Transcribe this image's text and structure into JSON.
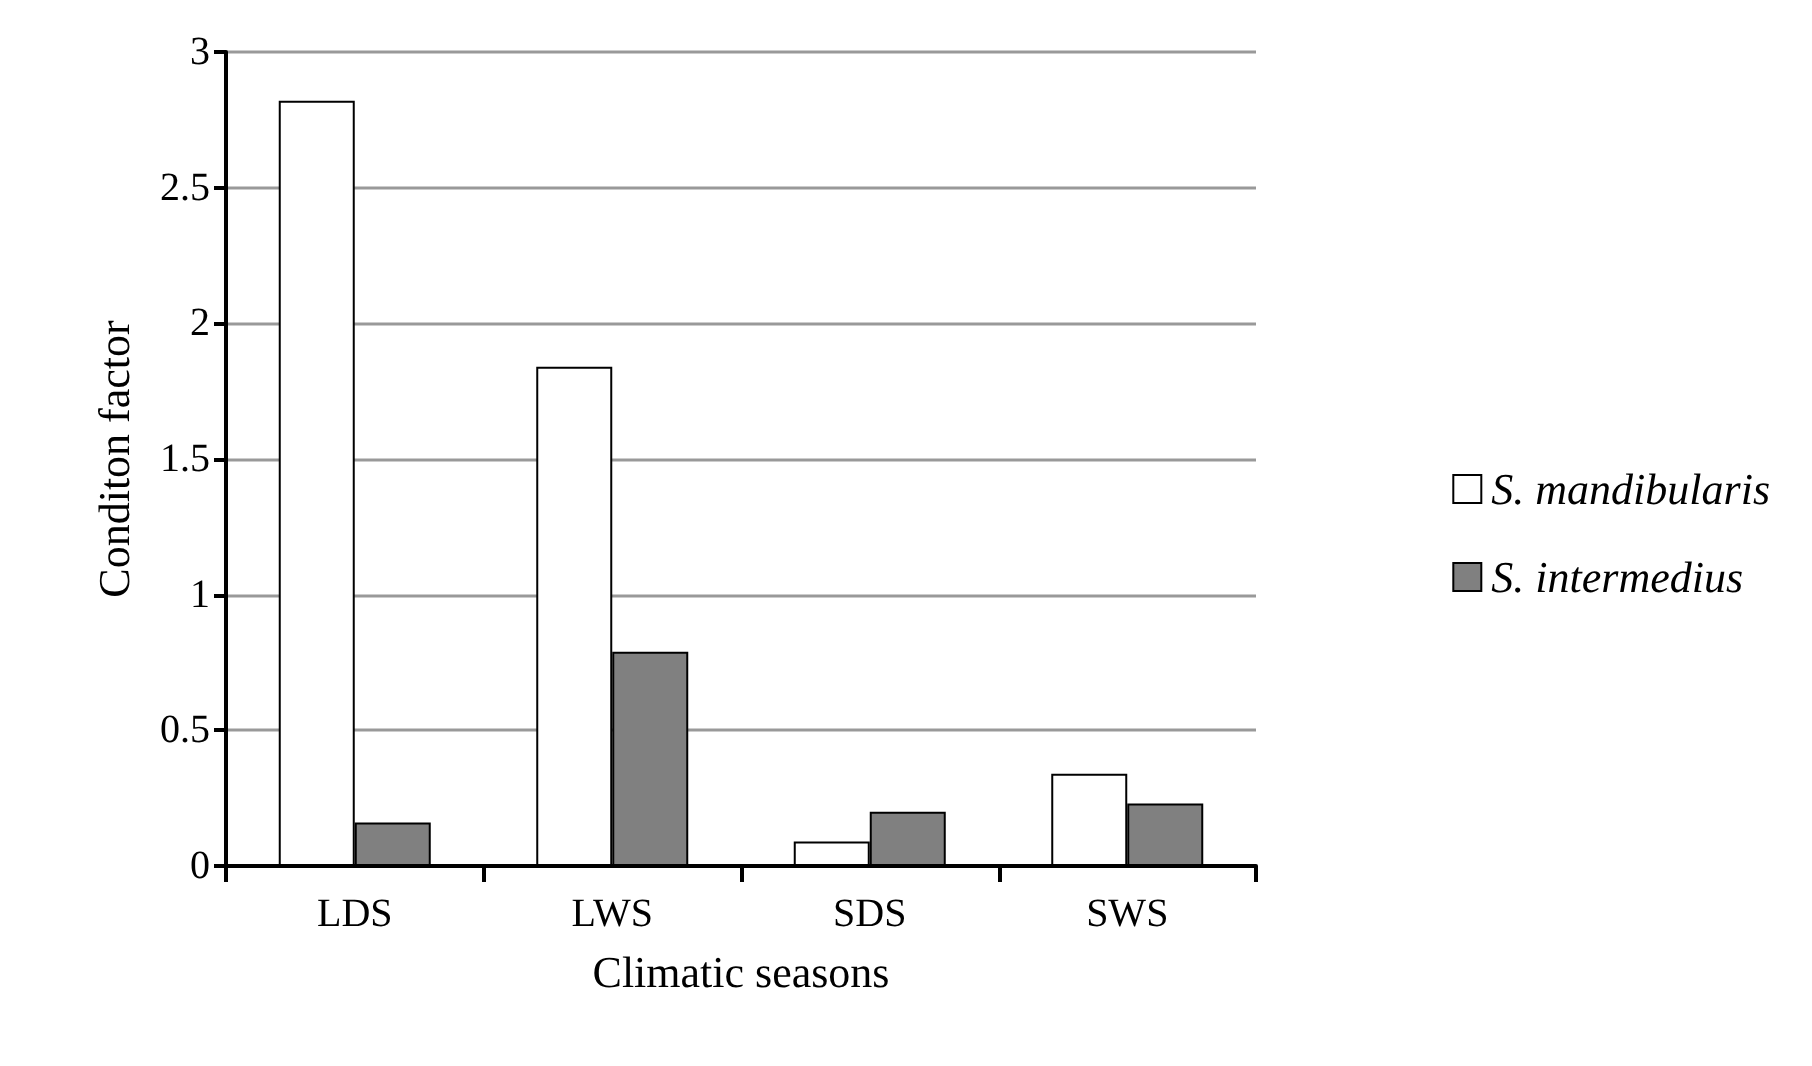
{
  "chart_data": {
    "type": "bar",
    "xlabel": "Climatic seasons",
    "ylabel": "Conditon factor",
    "categories": [
      "LDS",
      "LWS",
      "SDS",
      "SWS"
    ],
    "series": [
      {
        "name": "S. mandibularis",
        "color": "#ffffff",
        "values": [
          2.82,
          1.84,
          0.09,
          0.34
        ]
      },
      {
        "name": "S. intermedius",
        "color": "#808080",
        "values": [
          0.16,
          0.79,
          0.2,
          0.23
        ]
      }
    ],
    "ylim": [
      0,
      3
    ],
    "yticks": [
      0,
      0.5,
      1,
      1.5,
      2,
      2.5,
      3
    ],
    "grid": "y",
    "legend": "right"
  }
}
